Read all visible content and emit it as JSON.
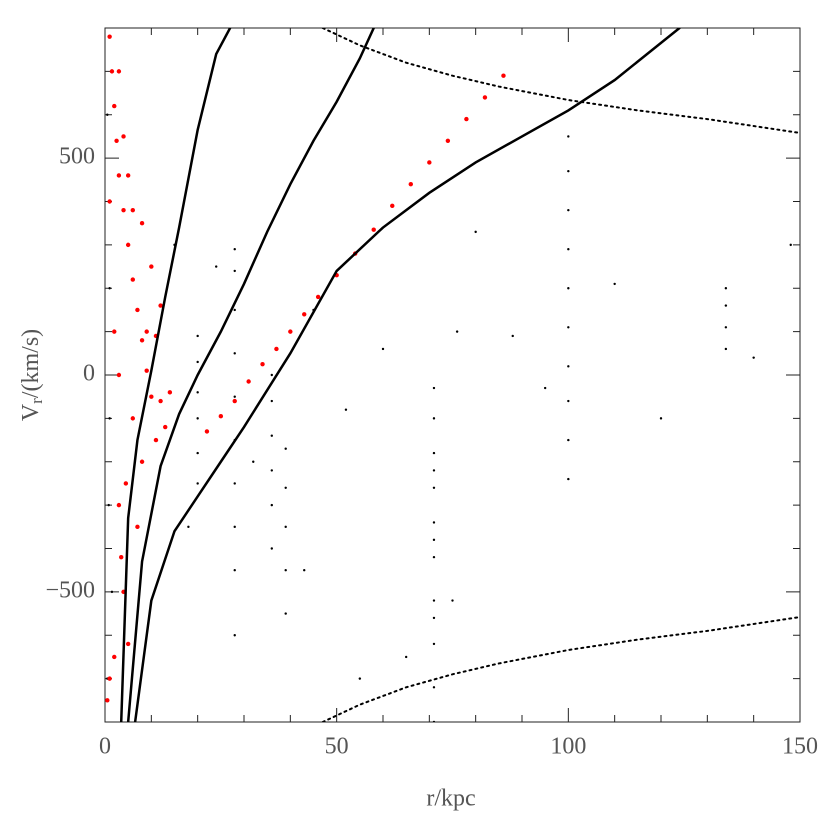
{
  "chart_data": {
    "type": "scatter",
    "xlabel": "r/kpc",
    "ylabel": "V",
    "ylabel_sub": "r",
    "ylabel_tail": "/(km/s)",
    "xlim": [
      0,
      150
    ],
    "ylim": [
      -800,
      800
    ],
    "xticks": [
      0,
      50,
      100,
      150
    ],
    "xminorticks": [
      10,
      20,
      30,
      40,
      60,
      70,
      80,
      90,
      110,
      120,
      130,
      140
    ],
    "yticks": [
      {
        "value": -500,
        "label": "−500"
      },
      0,
      500
    ],
    "yminorticks": [
      -700,
      -600,
      -400,
      -300,
      -200,
      -100,
      100,
      200,
      300,
      400,
      600,
      700
    ],
    "series": [
      {
        "kind": "points",
        "color": "#000000",
        "x": [
          20,
          20,
          20,
          20,
          20,
          20,
          28,
          28,
          28,
          28,
          28,
          28,
          28,
          28,
          28,
          28,
          36,
          36,
          36,
          36,
          36,
          36,
          39,
          39,
          39,
          39,
          39,
          71,
          71,
          71,
          71,
          71,
          71,
          71,
          71,
          71,
          71,
          71,
          71,
          71,
          100,
          100,
          100,
          100,
          100,
          100,
          100,
          100,
          100,
          100,
          134,
          134,
          134,
          134,
          0.5,
          0.5,
          0.8,
          1,
          1,
          1.2,
          1.5,
          2,
          15,
          18,
          24,
          32,
          45,
          52,
          60,
          65,
          80,
          88,
          95,
          110,
          120,
          140,
          148,
          76,
          75,
          43,
          55
        ],
        "values": [
          -250,
          -180,
          -100,
          -40,
          30,
          90,
          -600,
          -450,
          -350,
          -250,
          -150,
          -50,
          50,
          150,
          240,
          290,
          -400,
          -300,
          -220,
          -140,
          -60,
          0,
          -550,
          -450,
          -350,
          -260,
          -170,
          -800,
          -720,
          -620,
          -520,
          -420,
          -340,
          -260,
          -180,
          -100,
          -30,
          -560,
          -380,
          -220,
          -240,
          -150,
          -60,
          20,
          110,
          200,
          290,
          380,
          470,
          550,
          60,
          110,
          160,
          200,
          -700,
          600,
          -300,
          200,
          -100,
          400,
          -500,
          100,
          300,
          -350,
          250,
          -200,
          150,
          -80,
          60,
          -650,
          330,
          90,
          -30,
          210,
          -100,
          40,
          300,
          100,
          -520,
          -450,
          -700
        ],
        "size": 1.2
      },
      {
        "kind": "points",
        "color": "#ff0000",
        "x": [
          22,
          25,
          28,
          31,
          34,
          37,
          40,
          43,
          46,
          50,
          54,
          58,
          62,
          66,
          70,
          74,
          78,
          82,
          86,
          1,
          1.5,
          2,
          2.5,
          3,
          3,
          4,
          4,
          5,
          5,
          6,
          6,
          7,
          7,
          8,
          8,
          9,
          9,
          10,
          10,
          11,
          12,
          13,
          1,
          2,
          3,
          4,
          5,
          6,
          2,
          3,
          1,
          0.5,
          3.5,
          4.5,
          8,
          11,
          12,
          14
        ],
        "values": [
          -130,
          -95,
          -60,
          -15,
          25,
          60,
          100,
          140,
          180,
          230,
          280,
          335,
          390,
          440,
          490,
          540,
          590,
          640,
          690,
          780,
          700,
          620,
          540,
          460,
          -300,
          380,
          -500,
          300,
          -620,
          220,
          -100,
          150,
          -350,
          80,
          -200,
          10,
          100,
          -50,
          250,
          -150,
          -60,
          -120,
          -700,
          -650,
          0,
          550,
          460,
          380,
          100,
          700,
          400,
          -750,
          -420,
          -250,
          350,
          90,
          160,
          -40
        ],
        "size": 2.2
      },
      {
        "kind": "line",
        "color": "#000000",
        "style": "solid",
        "x": [
          3.5,
          5,
          7,
          10,
          13,
          16,
          20,
          24,
          27
        ],
        "values": [
          -800,
          -330,
          -150,
          10,
          180,
          340,
          565,
          740,
          800
        ]
      },
      {
        "kind": "line",
        "color": "#000000",
        "style": "solid",
        "x": [
          5,
          8,
          12,
          16,
          20,
          25,
          30,
          35,
          40,
          45,
          50,
          55,
          58
        ],
        "values": [
          -800,
          -430,
          -210,
          -90,
          0,
          100,
          210,
          330,
          440,
          540,
          630,
          730,
          800
        ]
      },
      {
        "kind": "line",
        "color": "#000000",
        "style": "solid",
        "x": [
          6.5,
          10,
          15,
          20,
          25,
          30,
          40,
          50,
          60,
          70,
          80,
          90,
          100,
          110,
          124
        ],
        "values": [
          -800,
          -520,
          -360,
          -280,
          -200,
          -120,
          50,
          240,
          340,
          420,
          490,
          550,
          610,
          680,
          800
        ]
      },
      {
        "kind": "line",
        "color": "#000000",
        "style": "dotted",
        "x": [
          47,
          55,
          65,
          75,
          85,
          100,
          115,
          130,
          150
        ],
        "values": [
          800,
          760,
          720,
          690,
          665,
          634,
          610,
          590,
          558
        ]
      },
      {
        "kind": "line",
        "color": "#000000",
        "style": "dotted",
        "x": [
          47,
          55,
          65,
          75,
          85,
          100,
          115,
          130,
          150
        ],
        "values": [
          -800,
          -760,
          -720,
          -690,
          -665,
          -634,
          -610,
          -590,
          -558
        ]
      }
    ]
  }
}
